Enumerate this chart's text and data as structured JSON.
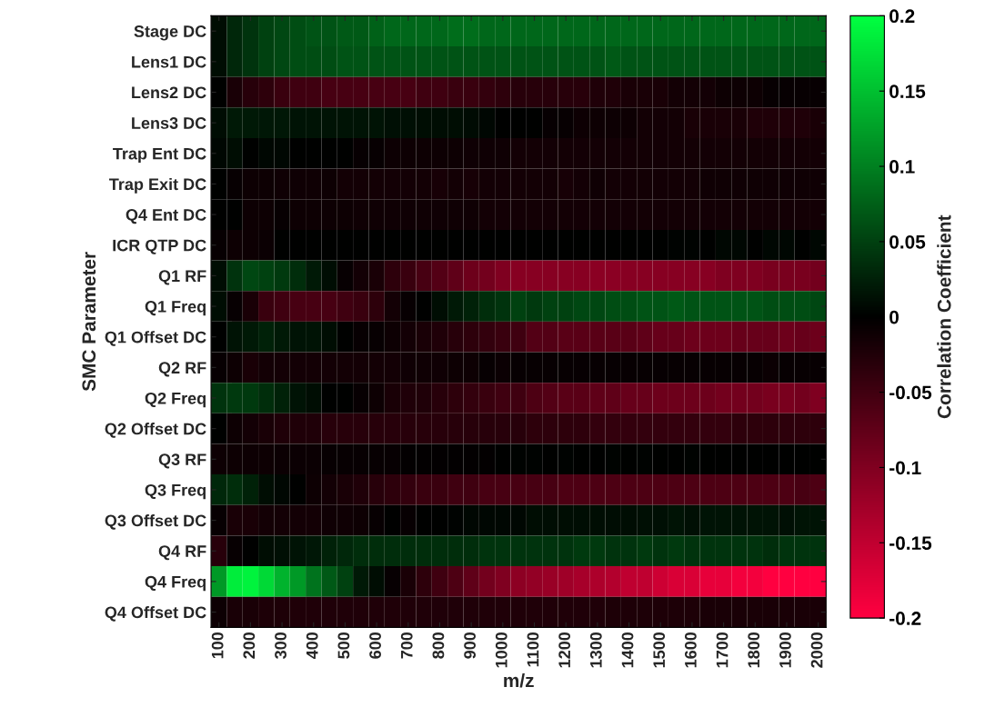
{
  "chart_data": {
    "type": "heatmap",
    "xlabel": "m/z",
    "ylabel": "SMC Parameter",
    "clabel": "Correlation Coefficient",
    "categories": [
      "100",
      null,
      "200",
      null,
      "300",
      null,
      "400",
      null,
      "500",
      null,
      "600",
      null,
      "700",
      null,
      "800",
      null,
      "900",
      null,
      "1000",
      null,
      "1100",
      null,
      "1200",
      null,
      "1300",
      null,
      "1400",
      null,
      "1500",
      null,
      "1600",
      null,
      "1700",
      null,
      "1800",
      null,
      "1900",
      null,
      "2000"
    ],
    "y_categories": [
      "Stage DC",
      "Lens1 DC",
      "Lens2 DC",
      "Lens3 DC",
      "Trap Ent DC",
      "Trap Exit DC",
      "Q4 Ent DC",
      "ICR QTP DC",
      "Q1 RF",
      "Q1 Freq",
      "Q1 Offset DC",
      "Q2 RF",
      "Q2 Freq",
      "Q2 Offset DC",
      "Q3 RF",
      "Q3 Freq",
      "Q3 Offset DC",
      "Q4 RF",
      "Q4 Freq",
      "Q4 Offset DC"
    ],
    "cells": [
      [
        0.01,
        0.03,
        0.04,
        0.05,
        0.055,
        0.06,
        0.065,
        0.065,
        0.07,
        0.07,
        0.075,
        0.08,
        0.08,
        0.08,
        0.08,
        0.085,
        0.085,
        0.08,
        0.08,
        0.08,
        0.08,
        0.08,
        0.08,
        0.08,
        0.08,
        0.08,
        0.08,
        0.08,
        0.08,
        0.08,
        0.08,
        0.08,
        0.08,
        0.08,
        0.08,
        0.08,
        0.08,
        0.08,
        0.08
      ],
      [
        0.01,
        0.03,
        0.04,
        0.05,
        0.055,
        0.06,
        0.06,
        0.06,
        0.065,
        0.065,
        0.065,
        0.065,
        0.065,
        0.065,
        0.065,
        0.065,
        0.065,
        0.065,
        0.065,
        0.065,
        0.065,
        0.065,
        0.065,
        0.065,
        0.065,
        0.07,
        0.065,
        0.065,
        0.065,
        0.065,
        0.065,
        0.065,
        0.065,
        0.065,
        0.065,
        0.065,
        0.065,
        0.065,
        0.065
      ],
      [
        0.0,
        -0.02,
        -0.03,
        -0.035,
        -0.045,
        -0.05,
        -0.05,
        -0.055,
        -0.055,
        -0.055,
        -0.055,
        -0.055,
        -0.055,
        -0.05,
        -0.05,
        -0.045,
        -0.045,
        -0.04,
        -0.035,
        -0.03,
        -0.03,
        -0.03,
        -0.03,
        -0.03,
        -0.025,
        -0.025,
        -0.02,
        -0.02,
        -0.02,
        -0.015,
        -0.015,
        -0.015,
        -0.01,
        -0.01,
        -0.01,
        -0.005,
        -0.005,
        -0.005,
        -0.005
      ],
      [
        0.01,
        0.02,
        0.02,
        0.018,
        0.018,
        0.015,
        0.015,
        0.015,
        0.015,
        0.015,
        0.015,
        0.012,
        0.012,
        0.01,
        0.01,
        0.01,
        0.008,
        0.005,
        0.0,
        0.0,
        0.0,
        -0.005,
        -0.005,
        -0.01,
        -0.01,
        -0.01,
        -0.01,
        -0.015,
        -0.015,
        -0.015,
        -0.02,
        -0.02,
        -0.02,
        -0.02,
        -0.025,
        -0.025,
        -0.025,
        -0.025,
        -0.02
      ],
      [
        0.005,
        0.01,
        0.0,
        0.005,
        0.005,
        0.0,
        0.0,
        0.0,
        0.0,
        -0.005,
        -0.005,
        -0.01,
        -0.01,
        -0.01,
        -0.01,
        -0.01,
        -0.012,
        -0.012,
        -0.012,
        -0.015,
        -0.015,
        -0.015,
        -0.015,
        -0.015,
        -0.015,
        -0.015,
        -0.015,
        -0.015,
        -0.015,
        -0.015,
        -0.015,
        -0.015,
        -0.015,
        -0.015,
        -0.015,
        -0.015,
        -0.015,
        -0.015,
        -0.015
      ],
      [
        0.0,
        -0.005,
        -0.01,
        -0.01,
        -0.012,
        -0.012,
        -0.012,
        -0.01,
        -0.015,
        -0.015,
        -0.015,
        -0.015,
        -0.015,
        -0.015,
        -0.018,
        -0.015,
        -0.018,
        -0.015,
        -0.015,
        -0.015,
        -0.015,
        -0.015,
        -0.018,
        -0.015,
        -0.012,
        -0.015,
        -0.015,
        -0.015,
        -0.015,
        -0.015,
        -0.015,
        -0.012,
        -0.012,
        -0.012,
        -0.012,
        -0.012,
        -0.012,
        -0.012,
        -0.012
      ],
      [
        0.0,
        0.0,
        -0.01,
        -0.01,
        -0.005,
        -0.01,
        -0.01,
        -0.01,
        -0.01,
        -0.012,
        -0.012,
        -0.012,
        -0.012,
        -0.012,
        -0.012,
        -0.012,
        -0.012,
        -0.015,
        -0.015,
        -0.015,
        -0.015,
        -0.015,
        -0.015,
        -0.015,
        -0.015,
        -0.015,
        -0.015,
        -0.015,
        -0.015,
        -0.015,
        -0.015,
        -0.015,
        -0.015,
        -0.015,
        -0.015,
        -0.015,
        -0.015,
        -0.015,
        -0.015
      ],
      [
        -0.005,
        -0.01,
        -0.01,
        -0.008,
        0.0,
        0.0,
        0.0,
        0.0,
        0.0,
        0.0,
        0.0,
        0.0,
        0.0,
        0.0,
        0.0,
        0.0,
        0.0,
        0.0,
        0.0,
        0.0,
        0.0,
        0.0,
        0.0,
        0.0,
        0.0,
        0.0,
        0.0,
        0.0,
        0.0,
        0.002,
        0.002,
        0.0,
        0.005,
        0.005,
        0.0,
        0.005,
        0.005,
        0.0,
        0.005
      ],
      [
        0.01,
        0.04,
        0.055,
        0.05,
        0.045,
        0.035,
        0.02,
        0.01,
        -0.005,
        -0.015,
        -0.02,
        -0.035,
        -0.045,
        -0.055,
        -0.065,
        -0.075,
        -0.085,
        -0.09,
        -0.1,
        -0.105,
        -0.105,
        -0.105,
        -0.105,
        -0.105,
        -0.108,
        -0.108,
        -0.105,
        -0.105,
        -0.105,
        -0.105,
        -0.105,
        -0.105,
        -0.1,
        -0.1,
        -0.1,
        -0.095,
        -0.095,
        -0.095,
        -0.09
      ],
      [
        0.01,
        -0.005,
        -0.02,
        -0.045,
        -0.05,
        -0.055,
        -0.055,
        -0.055,
        -0.05,
        -0.045,
        -0.035,
        -0.015,
        -0.005,
        0.0,
        0.01,
        0.02,
        0.025,
        0.035,
        0.04,
        0.05,
        0.045,
        0.05,
        0.05,
        0.055,
        0.055,
        0.06,
        0.06,
        0.065,
        0.065,
        0.07,
        0.065,
        0.065,
        0.065,
        0.065,
        0.065,
        0.06,
        0.06,
        0.06,
        0.055
      ],
      [
        0.0,
        0.015,
        0.02,
        0.025,
        0.02,
        0.015,
        0.015,
        0.01,
        0.0,
        -0.005,
        -0.005,
        -0.01,
        -0.015,
        -0.02,
        -0.025,
        -0.03,
        -0.035,
        -0.04,
        -0.045,
        -0.05,
        -0.065,
        -0.065,
        -0.07,
        -0.07,
        -0.07,
        -0.07,
        -0.07,
        -0.075,
        -0.08,
        -0.08,
        -0.085,
        -0.085,
        -0.085,
        -0.08,
        -0.08,
        -0.08,
        -0.085,
        -0.08,
        -0.085
      ],
      [
        -0.005,
        -0.01,
        -0.02,
        -0.015,
        -0.015,
        -0.015,
        -0.015,
        -0.015,
        -0.015,
        -0.015,
        -0.015,
        -0.015,
        -0.012,
        -0.012,
        -0.012,
        -0.01,
        -0.01,
        -0.005,
        -0.008,
        -0.005,
        -0.005,
        -0.005,
        -0.005,
        -0.005,
        -0.005,
        -0.005,
        -0.005,
        -0.005,
        -0.005,
        -0.005,
        -0.005,
        -0.005,
        -0.005,
        -0.005,
        -0.005,
        -0.008,
        -0.005,
        -0.005,
        -0.005
      ],
      [
        0.04,
        0.045,
        0.045,
        0.035,
        0.025,
        0.015,
        0.01,
        0.0,
        0.0,
        -0.005,
        -0.01,
        -0.02,
        -0.025,
        -0.025,
        -0.03,
        -0.035,
        -0.04,
        -0.045,
        -0.05,
        -0.05,
        -0.06,
        -0.065,
        -0.07,
        -0.07,
        -0.075,
        -0.075,
        -0.08,
        -0.08,
        -0.085,
        -0.085,
        -0.085,
        -0.085,
        -0.09,
        -0.09,
        -0.09,
        -0.095,
        -0.095,
        -0.09,
        -0.1
      ],
      [
        0.0,
        -0.01,
        -0.015,
        -0.02,
        -0.025,
        -0.025,
        -0.025,
        -0.03,
        -0.03,
        -0.03,
        -0.03,
        -0.03,
        -0.03,
        -0.03,
        -0.03,
        -0.03,
        -0.03,
        -0.03,
        -0.03,
        -0.03,
        -0.035,
        -0.035,
        -0.035,
        -0.035,
        -0.04,
        -0.04,
        -0.04,
        -0.04,
        -0.04,
        -0.04,
        -0.04,
        -0.04,
        -0.04,
        -0.035,
        -0.035,
        -0.035,
        -0.035,
        -0.035,
        -0.035
      ],
      [
        -0.01,
        -0.01,
        -0.01,
        -0.01,
        -0.008,
        -0.008,
        -0.008,
        -0.005,
        -0.005,
        -0.005,
        -0.005,
        -0.005,
        -0.002,
        -0.002,
        -0.002,
        -0.002,
        -0.002,
        -0.002,
        0.0,
        0.002,
        0.002,
        0.0,
        0.002,
        0.0,
        0.0,
        0.003,
        0.0,
        0.003,
        0.0,
        0.0,
        0.003,
        0.0,
        0.0,
        0.0,
        0.0,
        0.0,
        0.0,
        0.0,
        0.0
      ],
      [
        0.03,
        0.035,
        0.025,
        0.01,
        0.005,
        0.0,
        -0.01,
        -0.015,
        -0.02,
        -0.025,
        -0.03,
        -0.035,
        -0.04,
        -0.045,
        -0.045,
        -0.05,
        -0.05,
        -0.055,
        -0.055,
        -0.055,
        -0.055,
        -0.055,
        -0.06,
        -0.06,
        -0.06,
        -0.06,
        -0.06,
        -0.06,
        -0.06,
        -0.06,
        -0.06,
        -0.06,
        -0.06,
        -0.06,
        -0.06,
        -0.06,
        -0.06,
        -0.055,
        -0.06
      ],
      [
        -0.005,
        -0.02,
        -0.02,
        -0.015,
        -0.015,
        -0.015,
        -0.015,
        -0.012,
        -0.012,
        -0.01,
        -0.005,
        0.0,
        -0.005,
        0.0,
        0.0,
        0.003,
        0.005,
        0.005,
        0.005,
        0.005,
        0.01,
        0.01,
        0.01,
        0.01,
        0.01,
        0.01,
        0.01,
        0.012,
        0.012,
        0.015,
        0.012,
        0.015,
        0.015,
        0.015,
        0.015,
        0.015,
        0.012,
        0.015,
        0.015
      ],
      [
        -0.03,
        -0.005,
        0.0,
        0.01,
        0.012,
        0.015,
        0.018,
        0.025,
        0.03,
        0.035,
        0.035,
        0.035,
        0.035,
        0.035,
        0.035,
        0.035,
        0.035,
        0.04,
        0.04,
        0.04,
        0.04,
        0.04,
        0.04,
        0.045,
        0.045,
        0.04,
        0.04,
        0.045,
        0.04,
        0.045,
        0.04,
        0.04,
        0.04,
        0.04,
        0.04,
        0.035,
        0.04,
        0.04,
        0.04
      ],
      [
        0.12,
        0.185,
        0.19,
        0.17,
        0.14,
        0.12,
        0.09,
        0.07,
        0.05,
        0.02,
        0.01,
        -0.005,
        -0.02,
        -0.035,
        -0.05,
        -0.06,
        -0.075,
        -0.09,
        -0.1,
        -0.11,
        -0.115,
        -0.12,
        -0.125,
        -0.13,
        -0.135,
        -0.14,
        -0.15,
        -0.15,
        -0.16,
        -0.17,
        -0.17,
        -0.18,
        -0.18,
        -0.19,
        -0.19,
        -0.2,
        -0.2,
        -0.2,
        -0.2
      ],
      [
        -0.01,
        -0.02,
        -0.02,
        -0.022,
        -0.022,
        -0.025,
        -0.025,
        -0.025,
        -0.025,
        -0.025,
        -0.025,
        -0.025,
        -0.025,
        -0.025,
        -0.025,
        -0.025,
        -0.025,
        -0.025,
        -0.025,
        -0.025,
        -0.025,
        -0.025,
        -0.025,
        -0.025,
        -0.025,
        -0.022,
        -0.022,
        -0.022,
        -0.022,
        -0.022,
        -0.022,
        -0.02,
        -0.02,
        -0.02,
        -0.02,
        -0.02,
        -0.02,
        -0.02,
        -0.02
      ]
    ],
    "clim": [
      -0.2,
      0.2
    ],
    "cticks": [
      0.2,
      0.15,
      0.1,
      0.05,
      0,
      {
        "value": -0.05,
        "label": "-0.05"
      },
      {
        "value": -0.1,
        "label": "-0.1"
      },
      {
        "value": -0.15,
        "label": "-0.15"
      },
      {
        "value": -0.2,
        "label": "-0.2"
      }
    ]
  }
}
